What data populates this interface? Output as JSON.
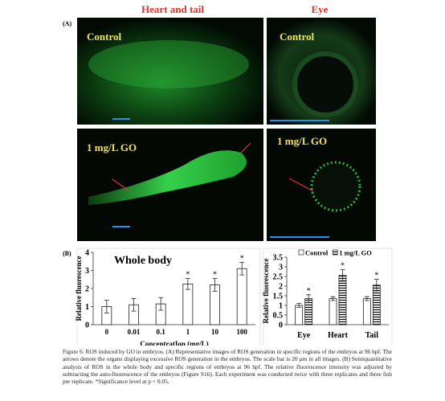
{
  "panel_a": {
    "label": "(A)",
    "column_titles": [
      "Heart and tail",
      "Eye"
    ],
    "images": [
      {
        "label": "Control"
      },
      {
        "label": "Control"
      },
      {
        "label": "1 mg/L GO"
      },
      {
        "label": "1 mg/L GO"
      }
    ]
  },
  "panel_b": {
    "label": "(B)"
  },
  "chart_data": [
    {
      "type": "bar",
      "title": "Whole body",
      "y_label": "Relative fluorescence",
      "x_label": "ConcentratIon (mg/L)",
      "categories": [
        "0",
        "0.01",
        "0.1",
        "1",
        "10",
        "100"
      ],
      "values": [
        1.0,
        1.1,
        1.15,
        2.25,
        2.2,
        3.1
      ],
      "errors": [
        0.35,
        0.35,
        0.35,
        0.3,
        0.35,
        0.35
      ],
      "significance": [
        null,
        null,
        null,
        "*",
        "*",
        "*"
      ],
      "color": "#ffffff",
      "ylim": [
        0,
        4
      ],
      "yticks": [
        0,
        1,
        2,
        3,
        4
      ]
    },
    {
      "type": "grouped_bar",
      "y_label": "Relative fluorescence",
      "categories": [
        "Eye",
        "Heart",
        "Tail"
      ],
      "series": [
        {
          "name": "Control",
          "color": "#ffffff",
          "values": [
            1.0,
            1.35,
            1.35
          ],
          "errors": [
            0.1,
            0.1,
            0.1
          ]
        },
        {
          "name": "1 mg/L GO",
          "color": "#ffffff",
          "hatch": "horizontal",
          "values": [
            1.35,
            2.55,
            2.05
          ],
          "errors": [
            0.2,
            0.3,
            0.3
          ],
          "significance": [
            "*",
            "*",
            "*"
          ]
        }
      ],
      "ylim": [
        0,
        3.5
      ],
      "yticks": [
        0,
        0.5,
        1,
        1.5,
        2,
        2.5,
        3,
        3.5
      ],
      "legend": "top"
    }
  ],
  "caption": "Figure 6. ROS induced by GO in embryos. (A) Representative images of ROS generation in specific regions of the embryos at 96 hpf. The arrows denote the organs displaying excessive ROS generation in the embryos. The scale bar is 20 μm in all images. (B) Semiquantitative analysis of ROS in the whole body and specific regions of embryos at 96 hpf. The relative fluorescence intensity was adjusted by subtracting the auto-fluorescence of the embryos (Figure S16). Each experiment was conducted twice with three replicates and three fish per replicate. *Significance level at p < 0.05."
}
